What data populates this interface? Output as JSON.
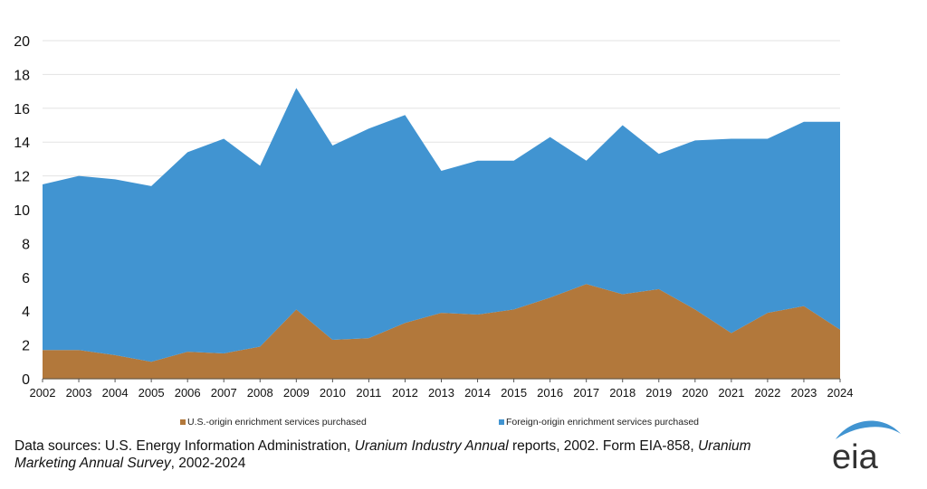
{
  "chart_data": {
    "type": "area",
    "stacked": true,
    "title": "",
    "xlabel": "",
    "ylabel": "",
    "ylim": [
      0,
      20
    ],
    "yticks": [
      0,
      2,
      4,
      6,
      8,
      10,
      12,
      14,
      16,
      18,
      20
    ],
    "grid": true,
    "legend_position": "bottom",
    "categories": [
      "2002",
      "2003",
      "2004",
      "2005",
      "2006",
      "2007",
      "2008",
      "2009",
      "2010",
      "2011",
      "2012",
      "2013",
      "2014",
      "2015",
      "2016",
      "2017",
      "2018",
      "2019",
      "2020",
      "2021",
      "2022",
      "2023",
      "2024"
    ],
    "series": [
      {
        "name": "U.S.-origin enrichment services purchased",
        "color": "#b2783b",
        "values": [
          1.7,
          1.7,
          1.4,
          1.0,
          1.6,
          1.5,
          1.9,
          4.1,
          2.3,
          2.4,
          3.3,
          3.9,
          3.8,
          4.1,
          4.8,
          5.6,
          5.0,
          5.3,
          4.1,
          2.7,
          3.9,
          4.3,
          2.9
        ]
      },
      {
        "name": "Foreign-origin enrichment services purchased",
        "color": "#4194d1",
        "values": [
          9.8,
          10.3,
          10.4,
          10.4,
          11.8,
          12.7,
          10.7,
          13.1,
          11.5,
          12.4,
          12.3,
          8.4,
          9.1,
          8.8,
          9.5,
          7.3,
          10.0,
          8.0,
          10.0,
          11.5,
          10.3,
          10.9,
          12.3
        ]
      }
    ]
  },
  "source": {
    "parts": [
      {
        "text": "Data sources: U.S. Energy Information Administration, ",
        "italic": false
      },
      {
        "text": "Uranium Industry Annual",
        "italic": true
      },
      {
        "text": " reports, 2002. Form EIA-858, ",
        "italic": false
      },
      {
        "text": "Uranium Marketing Annual Survey",
        "italic": true
      },
      {
        "text": ", 2002-2024",
        "italic": false
      }
    ]
  },
  "logo": {
    "text": "eia",
    "color": "#4194d1"
  }
}
